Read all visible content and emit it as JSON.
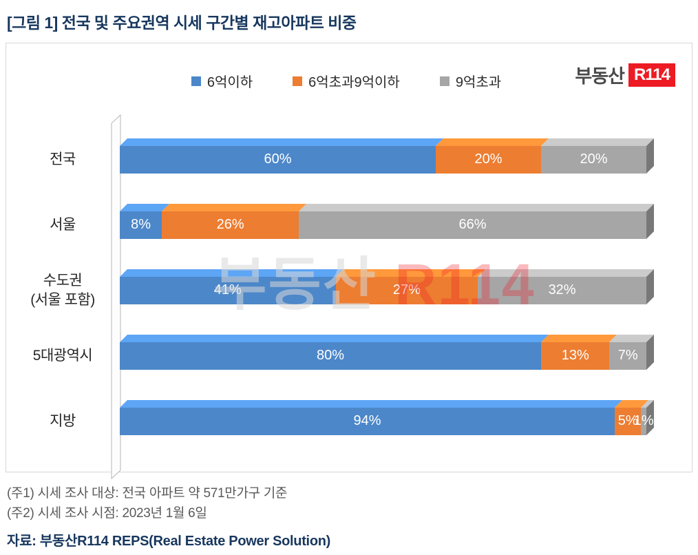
{
  "title": "[그림 1] 전국 및 주요권역 시세 구간별 재고아파트 비중",
  "logo": {
    "brand": "부동산",
    "badge": "R114"
  },
  "legend": [
    {
      "label": "6억이하",
      "color": "#4C87C9"
    },
    {
      "label": "6억초과9억이하",
      "color": "#ED7D31"
    },
    {
      "label": "9억초과",
      "color": "#A6A6A6"
    }
  ],
  "chart_data": {
    "type": "bar",
    "orientation": "horizontal",
    "stacked": true,
    "unit": "%",
    "categories": [
      "전국",
      "서울",
      "수도권\n(서울 포함)",
      "5대광역시",
      "지방"
    ],
    "series": [
      {
        "name": "6억이하",
        "color": "#4C87C9",
        "values": [
          60,
          8,
          41,
          80,
          94
        ]
      },
      {
        "name": "6억초과9억이하",
        "color": "#ED7D31",
        "values": [
          20,
          26,
          27,
          13,
          5
        ]
      },
      {
        "name": "9억초과",
        "color": "#A6A6A6",
        "values": [
          20,
          66,
          32,
          7,
          1
        ]
      }
    ],
    "xlim": [
      0,
      100
    ],
    "data_label_format": "{value}%",
    "legend_position": "top",
    "grid": false
  },
  "watermark": {
    "left": "부동산",
    "right": "R114"
  },
  "notes": [
    "(주1) 시세 조사 대상: 전국 아파트 약 571만가구 기준",
    "(주2) 시세 조사 시점: 2023년 1월 6일"
  ],
  "source": "자료: 부동산R114 REPS(Real Estate Power Solution)"
}
